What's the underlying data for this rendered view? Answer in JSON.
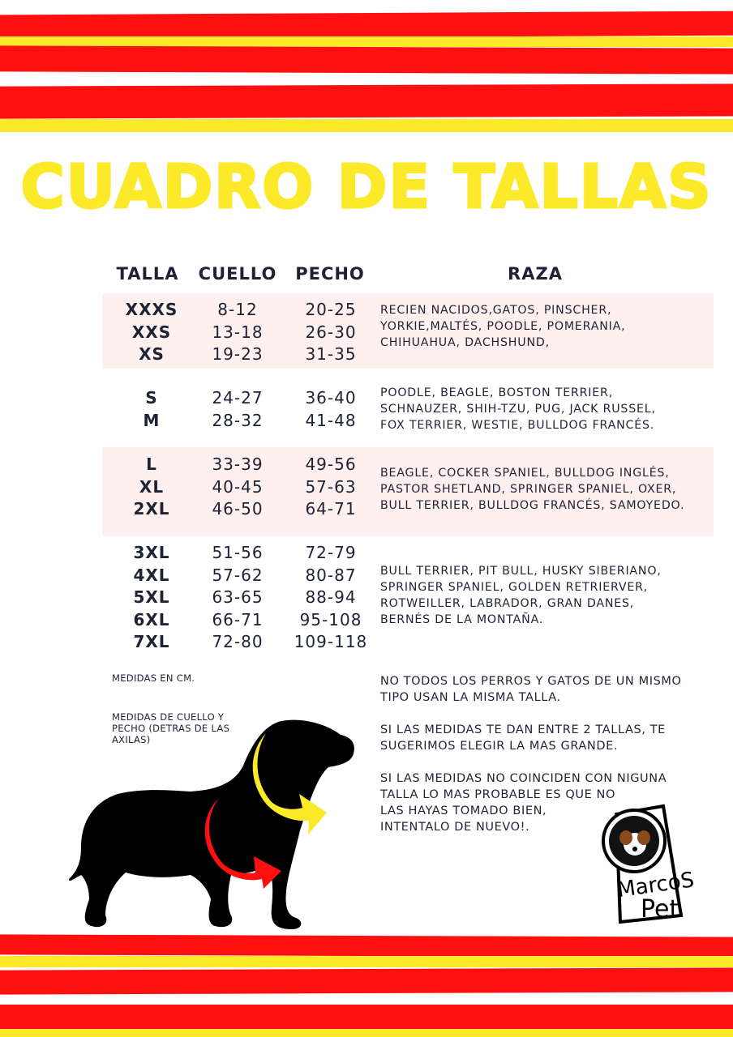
{
  "title": "CUADRO DE TALLAS",
  "colors": {
    "red": "#ff1010",
    "yellow": "#fbe92a",
    "text": "#1e2235",
    "band": "#fdf0ee"
  },
  "headers": {
    "talla": "TALLA",
    "cuello": "CUELLO",
    "pecho": "PECHO",
    "raza": "RAZA"
  },
  "groups": [
    {
      "rows": [
        {
          "talla": "XXXS",
          "cuello": "8-12",
          "pecho": "20-25"
        },
        {
          "talla": "XXS",
          "cuello": "13-18",
          "pecho": "26-30"
        },
        {
          "talla": "XS",
          "cuello": "19-23",
          "pecho": "31-35"
        }
      ],
      "raza": [
        "RECIEN NACIDOS,GATOS, PINSCHER,",
        "YORKIE,MALTÉS, POODLE, POMERANIA,",
        "CHIHUAHUA, DACHSHUND,"
      ]
    },
    {
      "rows": [
        {
          "talla": "S",
          "cuello": "24-27",
          "pecho": "36-40"
        },
        {
          "talla": "M",
          "cuello": "28-32",
          "pecho": "41-48"
        }
      ],
      "raza": [
        "POODLE, BEAGLE, BOSTON TERRIER,",
        "SCHNAUZER, SHIH-TZU, PUG, JACK RUSSEL,",
        "FOX TERRIER, WESTIE, BULLDOG FRANCÉS."
      ]
    },
    {
      "rows": [
        {
          "talla": "L",
          "cuello": "33-39",
          "pecho": "49-56"
        },
        {
          "talla": "XL",
          "cuello": "40-45",
          "pecho": "57-63"
        },
        {
          "talla": "2XL",
          "cuello": "46-50",
          "pecho": "64-71"
        }
      ],
      "raza": [
        "BEAGLE, COCKER SPANIEL, BULLDOG INGLÉS,",
        "PASTOR SHETLAND, SPRINGER SPANIEL, OXER,",
        "BULL TERRIER, BULLDOG FRANCÉS, SAMOYEDO."
      ]
    },
    {
      "rows": [
        {
          "talla": "3XL",
          "cuello": "51-56",
          "pecho": "72-79"
        },
        {
          "talla": "4XL",
          "cuello": "57-62",
          "pecho": "80-87"
        },
        {
          "talla": "5XL",
          "cuello": "63-65",
          "pecho": "88-94"
        },
        {
          "talla": "6XL",
          "cuello": "66-71",
          "pecho": "95-108"
        },
        {
          "talla": "7XL",
          "cuello": "72-80",
          "pecho": "109-118"
        }
      ],
      "raza": [
        "BULL TERRIER, PIT BULL, HUSKY SIBERIANO,",
        "SPRINGER SPANIEL, GOLDEN RETRIERVER,",
        "ROTWEILLER, LABRADOR, GRAN DANES,",
        "BERNÉS DE LA MONTAÑA."
      ]
    }
  ],
  "notes": {
    "units": "MEDIDAS EN CM.",
    "measure": [
      "MEDIDAS DE CUELLO Y",
      "PECHO (DETRAS DE LAS",
      "AXILAS)"
    ]
  },
  "tips": [
    [
      "NO TODOS LOS PERROS Y GATOS DE UN MISMO",
      "TIPO USAN LA MISMA TALLA."
    ],
    [
      "SI LAS MEDIDAS TE DAN ENTRE 2 TALLAS, TE",
      "SUGERIMOS ELEGIR LA MAS GRANDE."
    ],
    [
      "SI LAS MEDIDAS NO COINCIDEN CON NIGUNA",
      "TALLA LO MAS PROBABLE ES QUE NO",
      "LAS HAYAS TOMADO BIEN,",
      "INTENTALO DE NUEVO!."
    ]
  ],
  "logo": {
    "text": "MarcoS Pet"
  },
  "icons": [
    "dog-silhouette-icon",
    "neck-arrow-icon",
    "chest-arrow-icon"
  ]
}
